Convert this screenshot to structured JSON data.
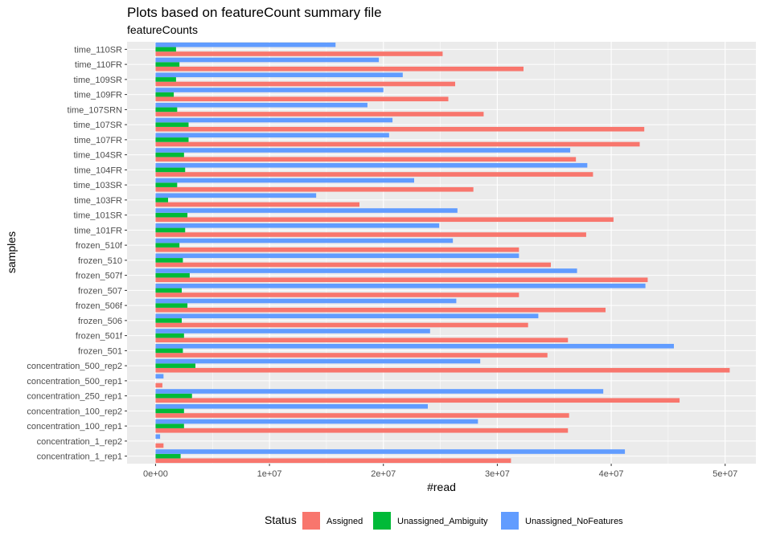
{
  "chart_data": {
    "type": "bar",
    "orientation": "horizontal",
    "title": "Plots based on featureCount summary file",
    "subtitle": "featureCounts",
    "xlabel": "#read",
    "ylabel": "samples",
    "xlim": [
      -2500000,
      52700000
    ],
    "xticks": [
      0,
      10000000,
      20000000,
      30000000,
      40000000,
      50000000
    ],
    "xtick_labels": [
      "0e+00",
      "1e+07",
      "2e+07",
      "3e+07",
      "4e+07",
      "5e+07"
    ],
    "grid": true,
    "legend": {
      "title": "Status",
      "position": "bottom"
    },
    "categories": [
      "time_110SR",
      "time_110FR",
      "time_109SR",
      "time_109FR",
      "time_107SRN",
      "time_107SR",
      "time_107FR",
      "time_104SR",
      "time_104FR",
      "time_103SR",
      "time_103FR",
      "time_101SR",
      "time_101FR",
      "frozen_510f",
      "frozen_510",
      "frozen_507f",
      "frozen_507",
      "frozen_506f",
      "frozen_506",
      "frozen_501f",
      "frozen_501",
      "concentration_500_rep2",
      "concentration_500_rep1",
      "concentration_250_rep1",
      "concentration_100_rep2",
      "concentration_100_rep1",
      "concentration_1_rep2",
      "concentration_1_rep1"
    ],
    "series": [
      {
        "name": "Assigned",
        "color": "#F8766D",
        "values": [
          25200000,
          32300000,
          26300000,
          25700000,
          28800000,
          42900000,
          42500000,
          36900000,
          38400000,
          27900000,
          17900000,
          40200000,
          37800000,
          31900000,
          34700000,
          43200000,
          31900000,
          39500000,
          32700000,
          36200000,
          34400000,
          50400000,
          600000,
          46000000,
          36300000,
          36200000,
          700000,
          31200000
        ]
      },
      {
        "name": "Unassigned_Ambiguity",
        "color": "#00BA38",
        "values": [
          1800000,
          2100000,
          1800000,
          1600000,
          1900000,
          2900000,
          2900000,
          2500000,
          2600000,
          1900000,
          1100000,
          2800000,
          2600000,
          2100000,
          2400000,
          3000000,
          2300000,
          2800000,
          2300000,
          2500000,
          2400000,
          3500000,
          0,
          3200000,
          2500000,
          2500000,
          0,
          2200000
        ]
      },
      {
        "name": "Unassigned_NoFeatures",
        "color": "#619CFF",
        "values": [
          15800000,
          19600000,
          21700000,
          20000000,
          18600000,
          20800000,
          20500000,
          36400000,
          37900000,
          22700000,
          14100000,
          26500000,
          24900000,
          26100000,
          31900000,
          37000000,
          43000000,
          26400000,
          33600000,
          24100000,
          45500000,
          28500000,
          700000,
          39300000,
          23900000,
          28300000,
          400000,
          41200000
        ]
      }
    ]
  }
}
